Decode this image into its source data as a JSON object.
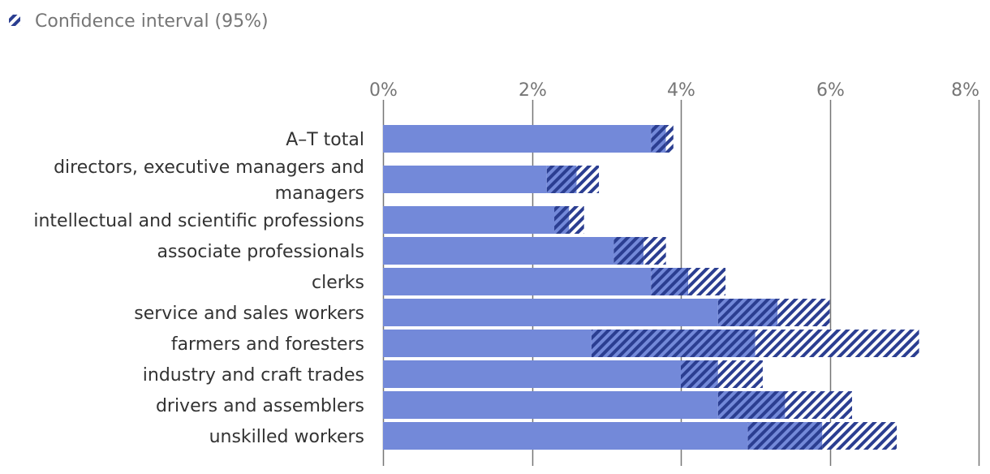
{
  "chart_data": {
    "type": "bar",
    "orientation": "horizontal",
    "legend": {
      "label": "Confidence interval (95%)",
      "position": "top-left"
    },
    "x_ticks": [
      "0%",
      "2%",
      "4%",
      "6%",
      "8%"
    ],
    "xlim": [
      0,
      8
    ],
    "grid": true,
    "categories": [
      [
        "A–T total"
      ],
      [
        "directors, executive managers and",
        "managers"
      ],
      [
        "intellectual and scientific professions"
      ],
      [
        "associate professionals"
      ],
      [
        "clerks"
      ],
      [
        "service and sales workers"
      ],
      [
        "farmers and foresters"
      ],
      [
        "industry and craft trades"
      ],
      [
        "drivers and assemblers"
      ],
      [
        "unskilled workers"
      ]
    ],
    "values": [
      3.8,
      2.6,
      2.5,
      3.5,
      4.1,
      5.3,
      5.0,
      4.5,
      5.4,
      5.9
    ],
    "ci_low": [
      3.6,
      2.2,
      2.3,
      3.1,
      3.6,
      4.5,
      2.8,
      4.0,
      4.5,
      4.9
    ],
    "ci_high": [
      3.9,
      2.9,
      2.7,
      3.8,
      4.6,
      6.0,
      7.2,
      5.1,
      6.3,
      6.9
    ]
  },
  "colors": {
    "bar": "#7389d9",
    "ci": "#2b3e91",
    "grid": "#767676",
    "background": "#ffffff"
  }
}
